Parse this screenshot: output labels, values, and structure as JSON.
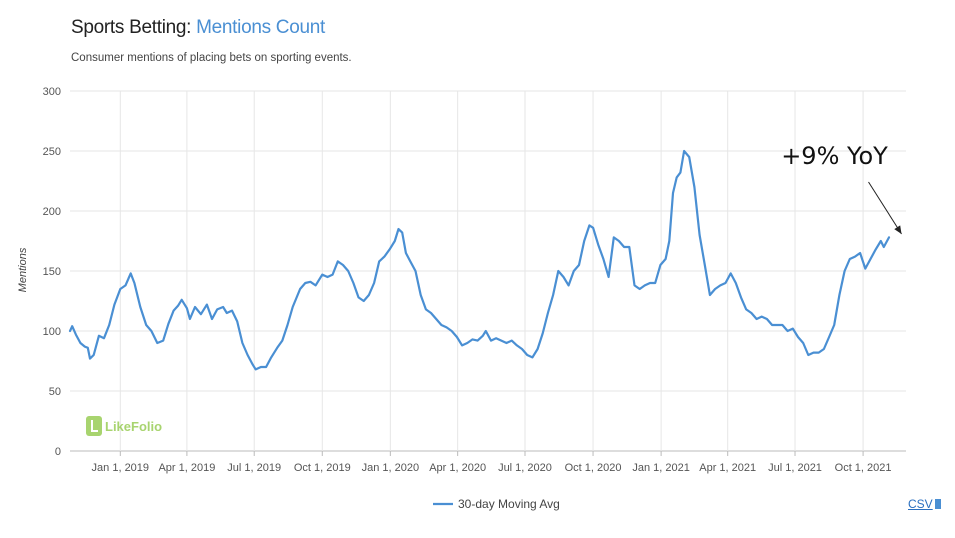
{
  "header": {
    "title_prefix": "Sports Betting:",
    "title_accent": "Mentions Count",
    "subtitle": "Consumer mentions of placing bets on sporting events."
  },
  "logo": {
    "text": "LikeFolio"
  },
  "csv": {
    "label": "CSV"
  },
  "colors": {
    "line": "#4a8fd3",
    "grid": "#e6e6e6",
    "accent": "#4a8fd3",
    "logo": "#8cc63f"
  },
  "chart_data": {
    "type": "line",
    "title": "Sports Betting: Mentions Count",
    "subtitle": "Consumer mentions of placing bets on sporting events.",
    "xlabel": "",
    "ylabel": "Mentions",
    "ylim": [
      0,
      300
    ],
    "yticks": [
      0,
      50,
      100,
      150,
      200,
      250,
      300
    ],
    "xticks": [
      "Jan 1, 2019",
      "Apr 1, 2019",
      "Jul 1, 2019",
      "Oct 1, 2019",
      "Jan 1, 2020",
      "Apr 1, 2020",
      "Jul 1, 2020",
      "Oct 1, 2020",
      "Jan 1, 2021",
      "Apr 1, 2021",
      "Jul 1, 2021",
      "Oct 1, 2021"
    ],
    "x_start": "2018-10-25",
    "x_end": "2021-11-28",
    "grid": true,
    "legend": {
      "position": "bottom-center",
      "entries": [
        "30-day Moving Avg"
      ]
    },
    "annotation": {
      "text": "+9% YoY",
      "target_date": "2021-11-26",
      "target_value": 175
    },
    "series": [
      {
        "name": "30-day Moving Avg",
        "points": [
          [
            "2018-10-25",
            100
          ],
          [
            "2018-10-28",
            104
          ],
          [
            "2018-11-02",
            97
          ],
          [
            "2018-11-08",
            90
          ],
          [
            "2018-11-14",
            87
          ],
          [
            "2018-11-18",
            86
          ],
          [
            "2018-11-21",
            77
          ],
          [
            "2018-11-26",
            80
          ],
          [
            "2018-12-03",
            96
          ],
          [
            "2018-12-10",
            94
          ],
          [
            "2018-12-17",
            105
          ],
          [
            "2018-12-24",
            122
          ],
          [
            "2019-01-01",
            135
          ],
          [
            "2019-01-08",
            138
          ],
          [
            "2019-01-15",
            148
          ],
          [
            "2019-01-20",
            140
          ],
          [
            "2019-01-28",
            120
          ],
          [
            "2019-02-05",
            105
          ],
          [
            "2019-02-12",
            100
          ],
          [
            "2019-02-20",
            90
          ],
          [
            "2019-02-28",
            92
          ],
          [
            "2019-03-07",
            106
          ],
          [
            "2019-03-14",
            117
          ],
          [
            "2019-03-20",
            121
          ],
          [
            "2019-03-25",
            126
          ],
          [
            "2019-04-01",
            119
          ],
          [
            "2019-04-05",
            110
          ],
          [
            "2019-04-12",
            120
          ],
          [
            "2019-04-20",
            114
          ],
          [
            "2019-04-28",
            122
          ],
          [
            "2019-05-05",
            110
          ],
          [
            "2019-05-12",
            118
          ],
          [
            "2019-05-20",
            120
          ],
          [
            "2019-05-25",
            115
          ],
          [
            "2019-06-01",
            117
          ],
          [
            "2019-06-08",
            108
          ],
          [
            "2019-06-15",
            90
          ],
          [
            "2019-06-22",
            80
          ],
          [
            "2019-06-29",
            72
          ],
          [
            "2019-07-03",
            68
          ],
          [
            "2019-07-10",
            70
          ],
          [
            "2019-07-17",
            70
          ],
          [
            "2019-07-24",
            78
          ],
          [
            "2019-08-01",
            86
          ],
          [
            "2019-08-08",
            92
          ],
          [
            "2019-08-15",
            105
          ],
          [
            "2019-08-22",
            120
          ],
          [
            "2019-09-01",
            135
          ],
          [
            "2019-09-08",
            140
          ],
          [
            "2019-09-15",
            141
          ],
          [
            "2019-09-22",
            138
          ],
          [
            "2019-10-01",
            147
          ],
          [
            "2019-10-08",
            145
          ],
          [
            "2019-10-15",
            147
          ],
          [
            "2019-10-22",
            158
          ],
          [
            "2019-10-29",
            155
          ],
          [
            "2019-11-05",
            150
          ],
          [
            "2019-11-12",
            140
          ],
          [
            "2019-11-19",
            128
          ],
          [
            "2019-11-26",
            125
          ],
          [
            "2019-12-03",
            130
          ],
          [
            "2019-12-10",
            140
          ],
          [
            "2019-12-17",
            158
          ],
          [
            "2019-12-24",
            162
          ],
          [
            "2019-12-31",
            168
          ],
          [
            "2020-01-07",
            175
          ],
          [
            "2020-01-12",
            185
          ],
          [
            "2020-01-17",
            182
          ],
          [
            "2020-01-22",
            165
          ],
          [
            "2020-01-28",
            158
          ],
          [
            "2020-02-04",
            150
          ],
          [
            "2020-02-11",
            130
          ],
          [
            "2020-02-18",
            118
          ],
          [
            "2020-02-25",
            115
          ],
          [
            "2020-03-03",
            110
          ],
          [
            "2020-03-10",
            105
          ],
          [
            "2020-03-17",
            103
          ],
          [
            "2020-03-24",
            100
          ],
          [
            "2020-03-31",
            95
          ],
          [
            "2020-04-07",
            88
          ],
          [
            "2020-04-14",
            90
          ],
          [
            "2020-04-21",
            93
          ],
          [
            "2020-04-28",
            92
          ],
          [
            "2020-05-05",
            96
          ],
          [
            "2020-05-09",
            100
          ],
          [
            "2020-05-16",
            92
          ],
          [
            "2020-05-23",
            94
          ],
          [
            "2020-05-30",
            92
          ],
          [
            "2020-06-06",
            90
          ],
          [
            "2020-06-13",
            92
          ],
          [
            "2020-06-20",
            88
          ],
          [
            "2020-06-27",
            85
          ],
          [
            "2020-07-04",
            80
          ],
          [
            "2020-07-11",
            78
          ],
          [
            "2020-07-18",
            85
          ],
          [
            "2020-07-25",
            98
          ],
          [
            "2020-08-01",
            115
          ],
          [
            "2020-08-08",
            130
          ],
          [
            "2020-08-15",
            150
          ],
          [
            "2020-08-22",
            145
          ],
          [
            "2020-08-29",
            138
          ],
          [
            "2020-09-05",
            150
          ],
          [
            "2020-09-12",
            155
          ],
          [
            "2020-09-19",
            175
          ],
          [
            "2020-09-26",
            188
          ],
          [
            "2020-10-01",
            186
          ],
          [
            "2020-10-08",
            172
          ],
          [
            "2020-10-15",
            160
          ],
          [
            "2020-10-22",
            145
          ],
          [
            "2020-10-29",
            178
          ],
          [
            "2020-11-05",
            175
          ],
          [
            "2020-11-12",
            170
          ],
          [
            "2020-11-19",
            170
          ],
          [
            "2020-11-26",
            138
          ],
          [
            "2020-12-03",
            135
          ],
          [
            "2020-12-10",
            138
          ],
          [
            "2020-12-17",
            140
          ],
          [
            "2020-12-24",
            140
          ],
          [
            "2020-12-31",
            155
          ],
          [
            "2021-01-07",
            160
          ],
          [
            "2021-01-12",
            175
          ],
          [
            "2021-01-17",
            215
          ],
          [
            "2021-01-22",
            228
          ],
          [
            "2021-01-27",
            232
          ],
          [
            "2021-02-01",
            250
          ],
          [
            "2021-02-08",
            245
          ],
          [
            "2021-02-15",
            220
          ],
          [
            "2021-02-22",
            180
          ],
          [
            "2021-03-01",
            155
          ],
          [
            "2021-03-08",
            130
          ],
          [
            "2021-03-15",
            135
          ],
          [
            "2021-03-22",
            138
          ],
          [
            "2021-03-29",
            140
          ],
          [
            "2021-04-05",
            148
          ],
          [
            "2021-04-12",
            140
          ],
          [
            "2021-04-19",
            128
          ],
          [
            "2021-04-26",
            118
          ],
          [
            "2021-05-03",
            115
          ],
          [
            "2021-05-10",
            110
          ],
          [
            "2021-05-17",
            112
          ],
          [
            "2021-05-24",
            110
          ],
          [
            "2021-05-31",
            105
          ],
          [
            "2021-06-07",
            105
          ],
          [
            "2021-06-14",
            105
          ],
          [
            "2021-06-21",
            100
          ],
          [
            "2021-06-28",
            102
          ],
          [
            "2021-07-05",
            95
          ],
          [
            "2021-07-12",
            90
          ],
          [
            "2021-07-19",
            80
          ],
          [
            "2021-07-26",
            82
          ],
          [
            "2021-08-02",
            82
          ],
          [
            "2021-08-09",
            85
          ],
          [
            "2021-08-16",
            95
          ],
          [
            "2021-08-23",
            105
          ],
          [
            "2021-08-30",
            130
          ],
          [
            "2021-09-06",
            150
          ],
          [
            "2021-09-13",
            160
          ],
          [
            "2021-09-20",
            162
          ],
          [
            "2021-09-27",
            165
          ],
          [
            "2021-10-04",
            152
          ],
          [
            "2021-10-11",
            160
          ],
          [
            "2021-10-18",
            168
          ],
          [
            "2021-10-25",
            175
          ],
          [
            "2021-10-29",
            170
          ],
          [
            "2021-11-05",
            178
          ]
        ]
      }
    ]
  }
}
